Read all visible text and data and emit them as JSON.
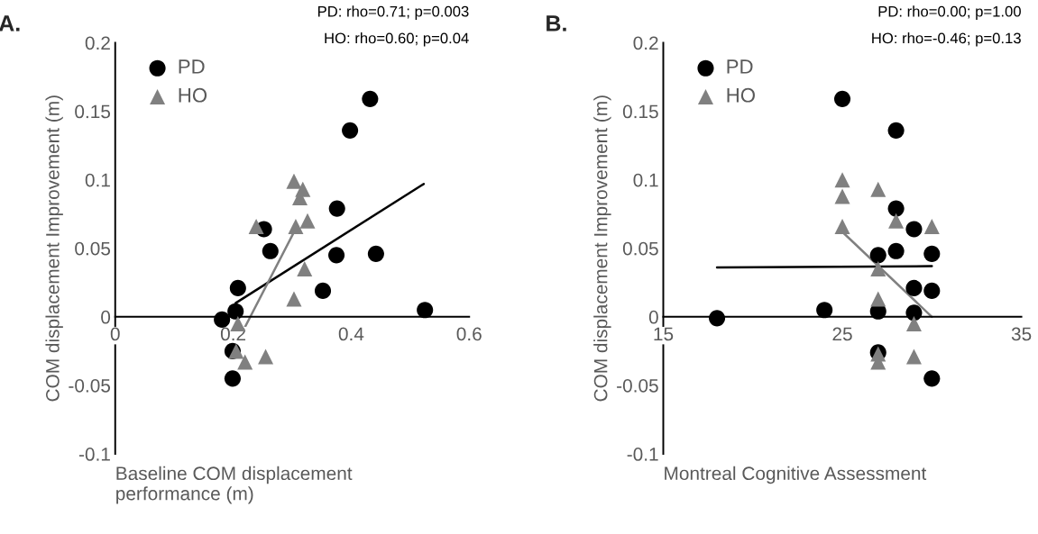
{
  "chart_data": [
    {
      "type": "scatter",
      "title": "A.",
      "xlabel": "Baseline COM displacement\nperformance (m)",
      "ylabel": "COM displacement Improvement (m)",
      "annotations": [
        "PD: rho=0.71; p=0.003",
        "HO: rho=0.60; p=0.04"
      ],
      "xlim": [
        0,
        0.6
      ],
      "xticks": [
        0,
        0.2,
        0.4,
        0.6
      ],
      "ylim": [
        -0.1,
        0.2
      ],
      "yticks": [
        -0.1,
        -0.05,
        0,
        0.05,
        0.1,
        0.15,
        0.2
      ],
      "grid": false,
      "legend": "top left",
      "series": [
        {
          "name": "PD",
          "color": "#000000",
          "marker": "circle",
          "x": [
            0.432,
            0.398,
            0.376,
            0.252,
            0.263,
            0.375,
            0.442,
            0.208,
            0.352,
            0.204,
            0.181,
            0.525,
            0.199,
            0.199
          ],
          "values": [
            0.159,
            0.136,
            0.079,
            0.064,
            0.048,
            0.045,
            0.046,
            0.021,
            0.019,
            0.004,
            -0.002,
            0.005,
            -0.025,
            -0.045
          ]
        },
        {
          "name": "HO",
          "color": "#808080",
          "marker": "triangle",
          "x": [
            0.303,
            0.318,
            0.313,
            0.239,
            0.306,
            0.326,
            0.321,
            0.303,
            0.208,
            0.205,
            0.22,
            0.255
          ],
          "values": [
            0.099,
            0.093,
            0.087,
            0.066,
            0.066,
            0.07,
            0.035,
            0.013,
            -0.005,
            -0.025,
            -0.033,
            -0.029
          ]
        },
        {
          "type": "line",
          "color": "#000000",
          "marker": "none",
          "x": [
            0.204,
            0.523
          ],
          "values": [
            0.01,
            0.097
          ]
        },
        {
          "type": "line",
          "color": "#808080",
          "marker": "none",
          "x": [
            0.205,
            0.308
          ],
          "values": [
            -0.02,
            0.066
          ]
        }
      ]
    },
    {
      "type": "scatter",
      "title": "B.",
      "xlabel": "Montreal Cognitive Assessment",
      "ylabel": "COM displacement Improvement (m)",
      "annotations": [
        "PD: rho=0.00; p=1.00",
        "HO: rho=-0.46; p=0.13"
      ],
      "xlim": [
        15,
        35
      ],
      "xticks": [
        15,
        25,
        35
      ],
      "ylim": [
        -0.1,
        0.2
      ],
      "yticks": [
        -0.1,
        -0.05,
        0,
        0.05,
        0.1,
        0.15,
        0.2
      ],
      "grid": false,
      "legend": "top left",
      "series": [
        {
          "name": "PD",
          "color": "#000000",
          "marker": "circle",
          "x": [
            25,
            28,
            28,
            29,
            27,
            28,
            30,
            29,
            30,
            24,
            27,
            29,
            18,
            27,
            30
          ],
          "values": [
            0.159,
            0.136,
            0.079,
            0.064,
            0.045,
            0.048,
            0.046,
            0.021,
            0.019,
            0.005,
            0.004,
            0.003,
            -0.001,
            -0.026,
            -0.045
          ]
        },
        {
          "name": "HO",
          "color": "#808080",
          "marker": "triangle",
          "x": [
            25,
            25,
            25,
            27,
            28,
            30,
            27,
            27,
            29,
            27,
            27,
            29
          ],
          "values": [
            0.1,
            0.088,
            0.066,
            0.093,
            0.07,
            0.066,
            0.035,
            0.013,
            -0.005,
            -0.027,
            -0.033,
            -0.029
          ]
        },
        {
          "type": "line",
          "color": "#000000",
          "marker": "none",
          "x": [
            18,
            30
          ],
          "values": [
            0.036,
            0.037
          ]
        },
        {
          "type": "line",
          "color": "#808080",
          "marker": "none",
          "x": [
            25,
            30
          ],
          "values": [
            0.062,
            0.0
          ]
        }
      ]
    }
  ]
}
